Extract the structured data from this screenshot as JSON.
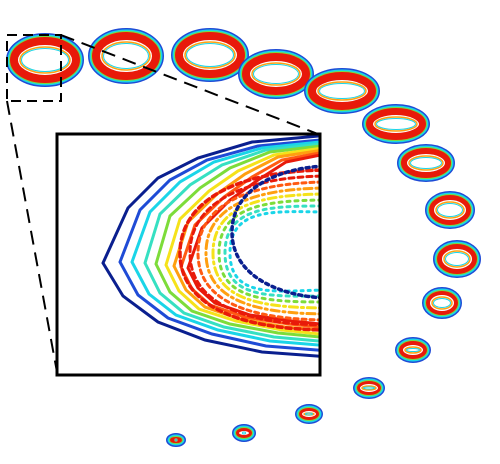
{
  "figure": {
    "description_type": "contour-ring-sequence-with-zoom-inset",
    "ring_count": 16,
    "contour_levels": 10,
    "colors": {
      "outer_blue": "#0a1f8f",
      "blue": "#1f4bd6",
      "cyan": "#1ad5e8",
      "aqua": "#36e0c2",
      "green": "#7ddc3a",
      "yellow": "#f5e21a",
      "orange": "#ff9f10",
      "orange_red": "#ff5a12",
      "red": "#e81a0a",
      "background": "#ffffff",
      "inset_border": "#000000",
      "zoom_box_dash": "#000000"
    }
  }
}
